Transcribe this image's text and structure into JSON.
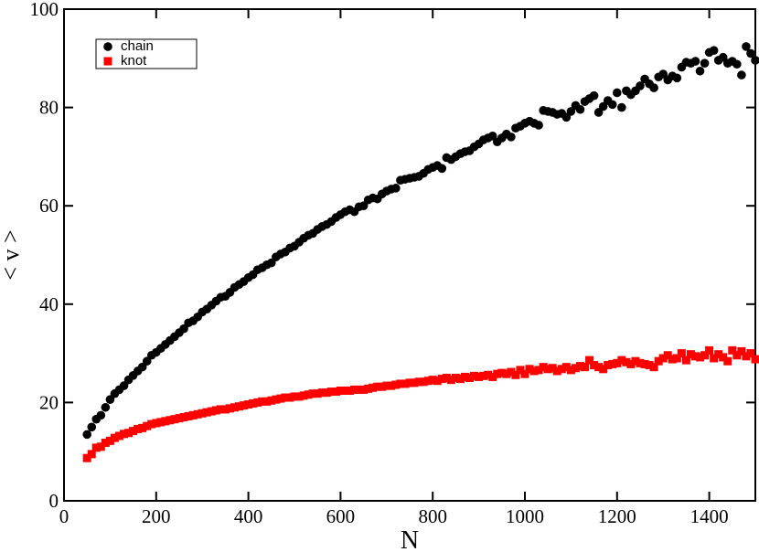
{
  "chart_data": {
    "type": "scatter",
    "x_label": "N",
    "y_label": "< v >",
    "xlim": [
      0,
      1500
    ],
    "xticks": [
      0,
      200,
      400,
      600,
      800,
      1000,
      1200,
      1400
    ],
    "ylim": [
      0,
      100
    ],
    "yticks": [
      0,
      20,
      40,
      60,
      80,
      100
    ],
    "legend_position": "upper-left",
    "x": [
      50,
      60,
      70,
      80,
      90,
      100,
      110,
      120,
      130,
      140,
      150,
      160,
      170,
      180,
      190,
      200,
      210,
      220,
      230,
      240,
      250,
      260,
      270,
      280,
      290,
      300,
      310,
      320,
      330,
      340,
      350,
      360,
      370,
      380,
      390,
      400,
      410,
      420,
      430,
      440,
      450,
      460,
      470,
      480,
      490,
      500,
      510,
      520,
      530,
      540,
      550,
      560,
      570,
      580,
      590,
      600,
      610,
      620,
      630,
      640,
      650,
      660,
      670,
      680,
      690,
      700,
      710,
      720,
      730,
      740,
      750,
      760,
      770,
      780,
      790,
      800,
      810,
      820,
      830,
      840,
      850,
      860,
      870,
      880,
      890,
      900,
      910,
      920,
      930,
      940,
      950,
      960,
      970,
      980,
      990,
      1000,
      1010,
      1020,
      1030,
      1040,
      1050,
      1060,
      1070,
      1080,
      1090,
      1100,
      1110,
      1120,
      1130,
      1140,
      1150,
      1160,
      1170,
      1180,
      1190,
      1200,
      1210,
      1220,
      1230,
      1240,
      1250,
      1260,
      1270,
      1280,
      1290,
      1300,
      1310,
      1320,
      1330,
      1340,
      1350,
      1360,
      1370,
      1380,
      1390,
      1400,
      1410,
      1420,
      1430,
      1440,
      1450,
      1460,
      1470,
      1480,
      1490,
      1500
    ],
    "series": [
      {
        "name": "chain",
        "color": "#000000",
        "marker": "circle",
        "values": [
          13.5,
          15,
          16.6,
          17.4,
          19,
          20.6,
          21.8,
          22.6,
          23.4,
          24.6,
          25.5,
          26.4,
          27.2,
          28.4,
          29.6,
          30.2,
          31,
          31.8,
          32.6,
          33.4,
          34.2,
          35,
          36.2,
          36.6,
          37.4,
          38.4,
          39,
          39.8,
          40.6,
          41.4,
          41.6,
          42.4,
          43.4,
          44,
          44.6,
          45.4,
          46,
          47,
          47.4,
          48,
          48.4,
          49.6,
          50.2,
          50.6,
          51.4,
          51.8,
          52.6,
          53.4,
          54,
          54.4,
          55.2,
          55.8,
          56.2,
          56.8,
          57.6,
          58.2,
          58.8,
          59.2,
          58.8,
          59.8,
          60,
          61.2,
          61.6,
          61.4,
          62.4,
          63,
          63.4,
          63.6,
          65.2,
          65.4,
          65.6,
          65.8,
          66,
          66.6,
          67.4,
          67.8,
          68.2,
          67.6,
          69.8,
          69.4,
          70,
          70.6,
          71,
          71.2,
          72,
          72.6,
          73.4,
          73.8,
          74.2,
          73,
          73.8,
          74.6,
          74,
          75.8,
          76.2,
          76.8,
          77.2,
          76.8,
          76.4,
          79.4,
          79.2,
          79,
          78.6,
          78.8,
          78,
          79.2,
          80.4,
          79.6,
          81.2,
          81.8,
          82.4,
          79,
          80.2,
          81.4,
          80.6,
          83,
          80,
          83.4,
          82.6,
          83.4,
          84.4,
          85.8,
          84.8,
          84,
          86.2,
          86.8,
          85.6,
          86.4,
          86,
          88.2,
          89.2,
          89,
          89.4,
          87.4,
          89,
          91.2,
          91.6,
          89.6,
          90.2,
          89,
          89.4,
          88.8,
          86.6,
          92.4,
          91,
          89.6
        ]
      },
      {
        "name": "knot",
        "color": "#ff0000",
        "marker": "square",
        "values": [
          8.7,
          9.5,
          10.8,
          11,
          11.8,
          12.2,
          12.8,
          13.2,
          13.6,
          13.8,
          14.2,
          14.6,
          14.8,
          15.2,
          15.6,
          15.8,
          16,
          16.2,
          16.4,
          16.6,
          16.8,
          17,
          17.2,
          17.4,
          17.6,
          17.8,
          18,
          18.2,
          18.4,
          18.6,
          18.6,
          18.8,
          19,
          19.2,
          19.4,
          19.6,
          19.8,
          20,
          20.2,
          20.2,
          20.4,
          20.6,
          20.8,
          21,
          21,
          21.2,
          21.2,
          21.4,
          21.6,
          21.8,
          21.8,
          22,
          22,
          22.2,
          22.2,
          22.4,
          22.4,
          22.4,
          22.6,
          22.6,
          22.6,
          22.8,
          23,
          23.2,
          23.2,
          23.4,
          23.4,
          23.6,
          23.8,
          23.8,
          24,
          24,
          24.2,
          24.2,
          24.4,
          24.6,
          24.4,
          24.8,
          25,
          24.6,
          25,
          24.8,
          25.2,
          25,
          25.4,
          25.2,
          25.4,
          25.6,
          25.2,
          25.8,
          26,
          25.8,
          26.2,
          25.6,
          26.6,
          25.8,
          26.8,
          26.4,
          26.6,
          27.2,
          26.8,
          27,
          26.4,
          26.8,
          27.2,
          26.6,
          27,
          27.4,
          27.2,
          28.6,
          27.6,
          27.2,
          26.8,
          27.6,
          27.8,
          28,
          28.6,
          28.2,
          27.8,
          28.4,
          28,
          27.8,
          27.6,
          27.2,
          28.4,
          29,
          29.6,
          28.8,
          29,
          30,
          28.6,
          29.8,
          29.4,
          29.2,
          29.6,
          30.6,
          29,
          29.8,
          29.2,
          28.4,
          30.6,
          29.6,
          30.4,
          29.4,
          30,
          28.8
        ]
      }
    ]
  }
}
